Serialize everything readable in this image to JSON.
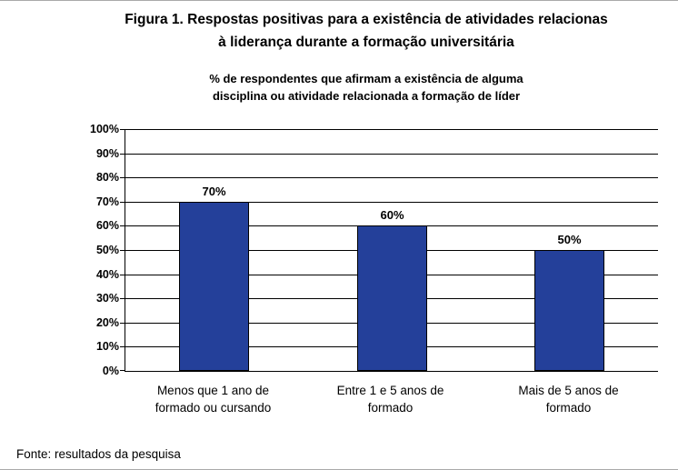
{
  "figure": {
    "title_lines": [
      "Figura 1. Respostas positivas para a existência de atividades relacionas",
      "à liderança durante a formação universitária"
    ],
    "subtitle_lines": [
      "% de respondentes que afirmam a existência de alguma",
      "disciplina ou atividade relacionada a formação de líder"
    ]
  },
  "source": {
    "text": "Fonte: resultados da pesquisa"
  },
  "chart_data": {
    "type": "bar",
    "title": "Figura 1. Respostas positivas para a existência de atividades relacionas à liderança durante a formação universitária",
    "subtitle": "% de respondentes que afirmam a existência de alguma disciplina ou atividade relacionada a formação de líder",
    "categories": [
      "Menos que 1 ano de\nformado ou cursando",
      "Entre 1 e 5 anos de\nformado",
      "Mais de 5 anos de\nformado"
    ],
    "values": [
      70,
      60,
      50
    ],
    "data_labels": [
      "70%",
      "60%",
      "50%"
    ],
    "y_ticks": [
      "100%",
      "90%",
      "80%",
      "70%",
      "60%",
      "50%",
      "40%",
      "30%",
      "20%",
      "10%",
      "0%"
    ],
    "xlabel": "",
    "ylabel": "",
    "ylim": [
      0,
      100
    ],
    "grid": true,
    "legend": "none",
    "colors": {
      "bar_fill": "#24409A",
      "bar_border": "#000000",
      "grid_line": "#000000",
      "text": "#000000"
    }
  }
}
